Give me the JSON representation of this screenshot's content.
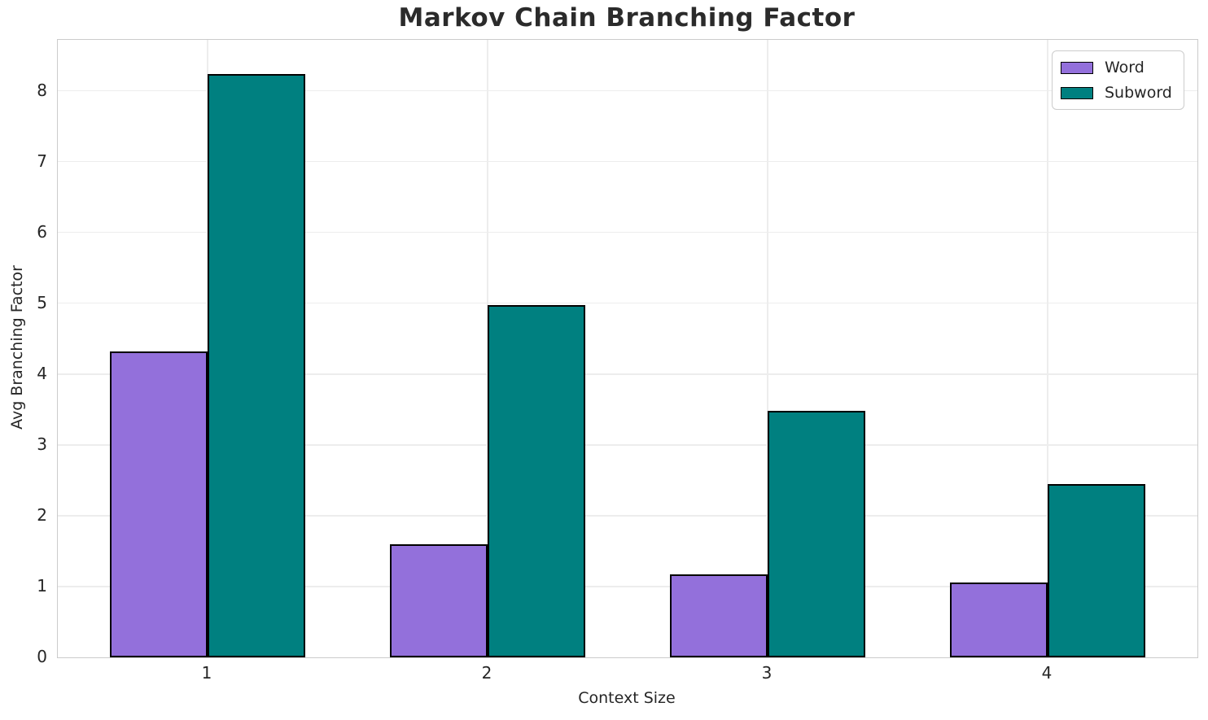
{
  "chart_data": {
    "type": "bar",
    "title": "Markov Chain Branching Factor",
    "xlabel": "Context Size",
    "ylabel": "Avg Branching Factor",
    "categories": [
      "1",
      "2",
      "3",
      "4"
    ],
    "series": [
      {
        "name": "Word",
        "color": "#9370DB",
        "values": [
          4.32,
          1.6,
          1.17,
          1.06
        ]
      },
      {
        "name": "Subword",
        "color": "#008080",
        "values": [
          8.24,
          4.98,
          3.48,
          2.45
        ]
      }
    ],
    "yticks": [
      0,
      1,
      2,
      3,
      4,
      5,
      6,
      7,
      8
    ],
    "ylim": [
      0,
      8.72
    ],
    "xlim_units": [
      0.465,
      4.535
    ],
    "bar_width_units": 0.35,
    "grid": true,
    "legend_position": "upper right",
    "edge_color": "#000000",
    "colors": {
      "grid": "#ededed",
      "spine": "#cbcbcb",
      "text": "#262626"
    }
  }
}
